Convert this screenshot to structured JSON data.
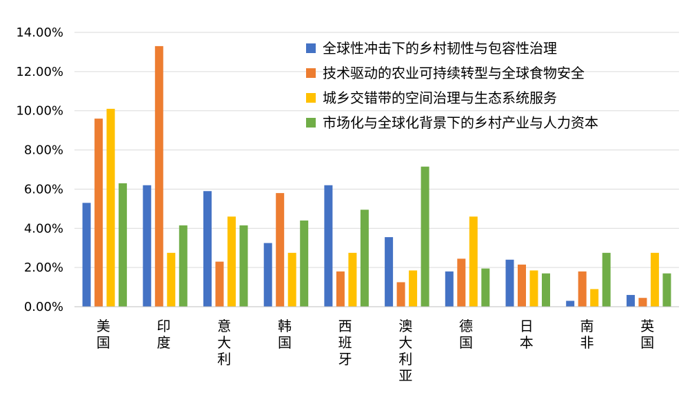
{
  "chart_data": {
    "type": "bar",
    "title": "",
    "xlabel": "",
    "ylabel": "",
    "ylim": [
      0,
      0.14
    ],
    "y_ticks": [
      "0.00%",
      "2.00%",
      "4.00%",
      "6.00%",
      "8.00%",
      "10.00%",
      "12.00%",
      "14.00%"
    ],
    "grid": true,
    "legend_position": "top-right",
    "categories": [
      "美国",
      "印度",
      "意大利",
      "韩国",
      "西班牙",
      "澳大利亚",
      "德国",
      "日本",
      "南非",
      "英国"
    ],
    "series": [
      {
        "name": "全球性冲击下的乡村韧性与包容性治理",
        "color": "#4472C4",
        "values": [
          0.053,
          0.062,
          0.059,
          0.0325,
          0.062,
          0.0355,
          0.018,
          0.024,
          0.003,
          0.006
        ]
      },
      {
        "name": "技术驱动的农业可持续转型与全球食物安全",
        "color": "#ED7D31",
        "values": [
          0.096,
          0.133,
          0.023,
          0.058,
          0.018,
          0.0125,
          0.0245,
          0.0215,
          0.018,
          0.0045
        ]
      },
      {
        "name": "城乡交错带的空间治理与生态系统服务",
        "color": "#FFC000",
        "values": [
          0.101,
          0.0275,
          0.046,
          0.0275,
          0.0275,
          0.0185,
          0.046,
          0.0185,
          0.009,
          0.0275
        ]
      },
      {
        "name": "市场化与全球化背景下的乡村产业与人力资本",
        "color": "#70AD47",
        "values": [
          0.063,
          0.0415,
          0.0415,
          0.044,
          0.0495,
          0.0715,
          0.0195,
          0.017,
          0.0275,
          0.017
        ]
      }
    ]
  }
}
